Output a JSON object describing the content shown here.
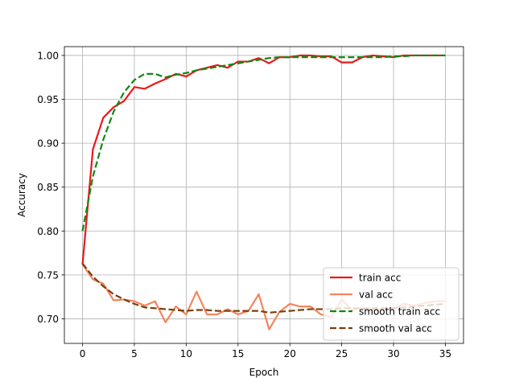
{
  "chart_data": {
    "type": "line",
    "title": "",
    "xlabel": "Epoch",
    "ylabel": "Accuracy",
    "xlim": [
      -1.75,
      36.75
    ],
    "ylim": [
      0.672,
      1.01
    ],
    "xticks": [
      0,
      5,
      10,
      15,
      20,
      25,
      30,
      35
    ],
    "yticks": [
      0.7,
      0.75,
      0.8,
      0.85,
      0.9,
      0.95,
      1.0
    ],
    "ytick_labels": [
      "0.70",
      "0.75",
      "0.80",
      "0.85",
      "0.90",
      "0.95",
      "1.00"
    ],
    "grid": true,
    "legend_position": "lower-right",
    "x": [
      0,
      1,
      2,
      3,
      4,
      5,
      6,
      7,
      8,
      9,
      10,
      11,
      12,
      13,
      14,
      15,
      16,
      17,
      18,
      19,
      20,
      21,
      22,
      23,
      24,
      25,
      26,
      27,
      28,
      29,
      30,
      31,
      32,
      33,
      34,
      35
    ],
    "series": [
      {
        "name": "train acc",
        "color": "#e8191c",
        "dash": "solid",
        "values": [
          0.762,
          0.893,
          0.929,
          0.941,
          0.948,
          0.964,
          0.962,
          0.968,
          0.973,
          0.979,
          0.976,
          0.983,
          0.986,
          0.989,
          0.986,
          0.993,
          0.993,
          0.997,
          0.991,
          0.998,
          0.998,
          1.0,
          1.0,
          0.999,
          0.999,
          0.992,
          0.992,
          0.998,
          1.0,
          0.999,
          0.998,
          1.0,
          1.0,
          1.0,
          1.0,
          1.0
        ]
      },
      {
        "name": "val acc",
        "color": "#f4845f",
        "dash": "solid",
        "values": [
          0.762,
          0.745,
          0.74,
          0.721,
          0.722,
          0.72,
          0.715,
          0.72,
          0.696,
          0.714,
          0.705,
          0.731,
          0.705,
          0.705,
          0.711,
          0.705,
          0.709,
          0.728,
          0.688,
          0.708,
          0.717,
          0.714,
          0.714,
          0.705,
          0.702,
          0.722,
          0.71,
          0.712,
          0.71,
          0.711,
          0.712,
          0.717,
          0.715,
          0.718,
          0.72,
          0.72
        ]
      },
      {
        "name": "smooth train acc",
        "color": "#118811",
        "dash": "dashed",
        "values": [
          0.8,
          0.862,
          0.904,
          0.936,
          0.958,
          0.972,
          0.979,
          0.979,
          0.975,
          0.978,
          0.98,
          0.983,
          0.985,
          0.987,
          0.989,
          0.991,
          0.993,
          0.995,
          0.997,
          0.998,
          0.998,
          0.998,
          0.998,
          0.998,
          0.998,
          0.998,
          0.998,
          0.998,
          0.998,
          0.998,
          0.999,
          0.999,
          1.0,
          1.0,
          1.0,
          1.0
        ]
      },
      {
        "name": "smooth val acc",
        "color": "#7a3f0b",
        "dash": "dashed",
        "values": [
          0.763,
          0.748,
          0.737,
          0.728,
          0.722,
          0.717,
          0.713,
          0.712,
          0.711,
          0.71,
          0.709,
          0.71,
          0.71,
          0.709,
          0.709,
          0.709,
          0.709,
          0.709,
          0.707,
          0.708,
          0.709,
          0.71,
          0.711,
          0.711,
          0.711,
          0.712,
          0.712,
          0.712,
          0.712,
          0.712,
          0.712,
          0.713,
          0.714,
          0.715,
          0.716,
          0.717
        ]
      }
    ]
  }
}
